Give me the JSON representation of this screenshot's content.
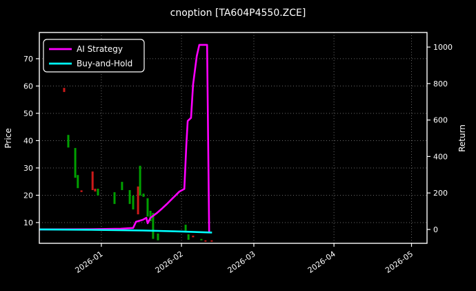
{
  "figure": {
    "title": "cnoption [TA604P4550.ZCE]",
    "background": "#000000",
    "text_color": "#ffffff",
    "spine_color": "#ffffff",
    "grid_color": "#6b6b6b"
  },
  "legend": {
    "items": [
      {
        "label": "AI Strategy",
        "color": "#ff00ff"
      },
      {
        "label": "Buy-and-Hold",
        "color": "#00ffff"
      }
    ]
  },
  "chart_data": {
    "type": "mixed",
    "subtypes": [
      "candlestick-price-bars",
      "line-returns"
    ],
    "title": "cnoption [TA604P4550.ZCE]",
    "grid": "dotted, on price ticks and month ticks",
    "legend_position": "upper left",
    "x_axis": {
      "start_date": "2025-12-08",
      "end_date": "2026-05-07",
      "domain_days": [
        0,
        150
      ],
      "ticks": [
        {
          "day": 24,
          "label": "2026-01"
        },
        {
          "day": 55,
          "label": "2026-02"
        },
        {
          "day": 83,
          "label": "2026-03"
        },
        {
          "day": 114,
          "label": "2026-04"
        },
        {
          "day": 144,
          "label": "2026-05"
        }
      ]
    },
    "price_axis": {
      "label": "Price",
      "ticks": [
        10,
        20,
        30,
        40,
        50,
        60,
        70
      ],
      "domain": [
        2.4,
        79.6
      ]
    },
    "return_axis": {
      "label": "Return",
      "ticks": [
        0,
        200,
        400,
        600,
        800,
        1000
      ],
      "domain": [
        -76,
        1080
      ]
    },
    "series": [
      {
        "name": "AI Strategy",
        "axis": "return",
        "color": "#ff00ff",
        "width": 2.6,
        "points": [
          [
            0,
            0
          ],
          [
            19.5,
            1
          ],
          [
            31.5,
            4
          ],
          [
            36.3,
            8
          ],
          [
            37.4,
            42
          ],
          [
            40,
            53
          ],
          [
            41.4,
            64
          ],
          [
            41.9,
            34
          ],
          [
            43,
            64
          ],
          [
            45.6,
            91
          ],
          [
            47.5,
            115
          ],
          [
            49.4,
            140
          ],
          [
            51.5,
            170
          ],
          [
            54.2,
            208
          ],
          [
            56.1,
            222
          ],
          [
            56.9,
            470
          ],
          [
            57.4,
            595
          ],
          [
            58.7,
            612
          ],
          [
            59.5,
            795
          ],
          [
            60.9,
            950
          ],
          [
            61.9,
            1012
          ],
          [
            64.9,
            1012
          ],
          [
            65.7,
            -17
          ]
        ]
      },
      {
        "name": "Buy-and-Hold",
        "axis": "return",
        "color": "#00ffff",
        "width": 2.6,
        "points": [
          [
            0,
            0
          ],
          [
            20,
            -2
          ],
          [
            40,
            -6
          ],
          [
            55,
            -11
          ],
          [
            66.8,
            -17
          ]
        ]
      }
    ],
    "candles": [
      {
        "date": "2025-12-18",
        "day": 9.6,
        "low": 57.8,
        "high": 59.3,
        "color": "red"
      },
      {
        "date": "2025-12-19",
        "day": 11.2,
        "low": 37.5,
        "high": 42.1,
        "color": "green"
      },
      {
        "date": "2025-12-22",
        "day": 13.9,
        "low": 26.4,
        "high": 37.3,
        "color": "green"
      },
      {
        "date": "2025-12-23",
        "day": 14.9,
        "low": 22.6,
        "high": 27.4,
        "color": "green"
      },
      {
        "date": "2025-12-24",
        "day": 16.3,
        "low": 21.2,
        "high": 21.8,
        "color": "red"
      },
      {
        "date": "2025-12-29",
        "day": 20.6,
        "low": 21.9,
        "high": 28.7,
        "color": "red"
      },
      {
        "date": "2025-12-30",
        "day": 21.6,
        "low": 21.4,
        "high": 22.4,
        "color": "red"
      },
      {
        "date": "2025-12-31",
        "day": 22.7,
        "low": 19.9,
        "high": 22.4,
        "color": "green"
      },
      {
        "date": "2026-01-06",
        "day": 29.1,
        "low": 16.8,
        "high": 21.1,
        "color": "green"
      },
      {
        "date": "2026-01-09",
        "day": 32.0,
        "low": 21.9,
        "high": 24.9,
        "color": "green"
      },
      {
        "date": "2026-01-12",
        "day": 35.0,
        "low": 16.8,
        "high": 21.9,
        "color": "green"
      },
      {
        "date": "2026-01-13",
        "day": 36.3,
        "low": 14.8,
        "high": 19.9,
        "color": "green"
      },
      {
        "date": "2026-01-15",
        "day": 38.2,
        "low": 13.0,
        "high": 23.2,
        "color": "red"
      },
      {
        "date": "2026-01-16",
        "day": 39.0,
        "low": 19.9,
        "high": 30.8,
        "color": "green"
      },
      {
        "date": "2026-01-17",
        "day": 40.3,
        "low": 19.4,
        "high": 20.6,
        "color": "green"
      },
      {
        "date": "2026-01-19",
        "day": 41.9,
        "low": 12.2,
        "high": 18.9,
        "color": "green"
      },
      {
        "date": "2026-01-20",
        "day": 43.0,
        "low": 10.5,
        "high": 14.3,
        "color": "green"
      },
      {
        "date": "2026-01-21",
        "day": 44.0,
        "low": 4.0,
        "high": 13.5,
        "color": "green"
      },
      {
        "date": "2026-01-23",
        "day": 45.9,
        "low": 3.5,
        "high": 6.0,
        "color": "green"
      },
      {
        "date": "2026-02-03",
        "day": 56.6,
        "low": 7.0,
        "high": 9.2,
        "color": "green"
      },
      {
        "date": "2026-02-04",
        "day": 57.7,
        "low": 3.7,
        "high": 5.7,
        "color": "green"
      },
      {
        "date": "2026-02-06",
        "day": 59.5,
        "low": 4.6,
        "high": 5.2,
        "color": "red"
      },
      {
        "date": "2026-02-09",
        "day": 62.7,
        "low": 3.5,
        "high": 4.0,
        "color": "green"
      },
      {
        "date": "2026-02-11",
        "day": 64.3,
        "low": 3.0,
        "high": 3.5,
        "color": "red"
      },
      {
        "date": "2026-02-13",
        "day": 66.7,
        "low": 3.0,
        "high": 3.5,
        "color": "red"
      }
    ],
    "candle_colors": {
      "green": "#00a000",
      "red": "#cc1a1a"
    }
  }
}
